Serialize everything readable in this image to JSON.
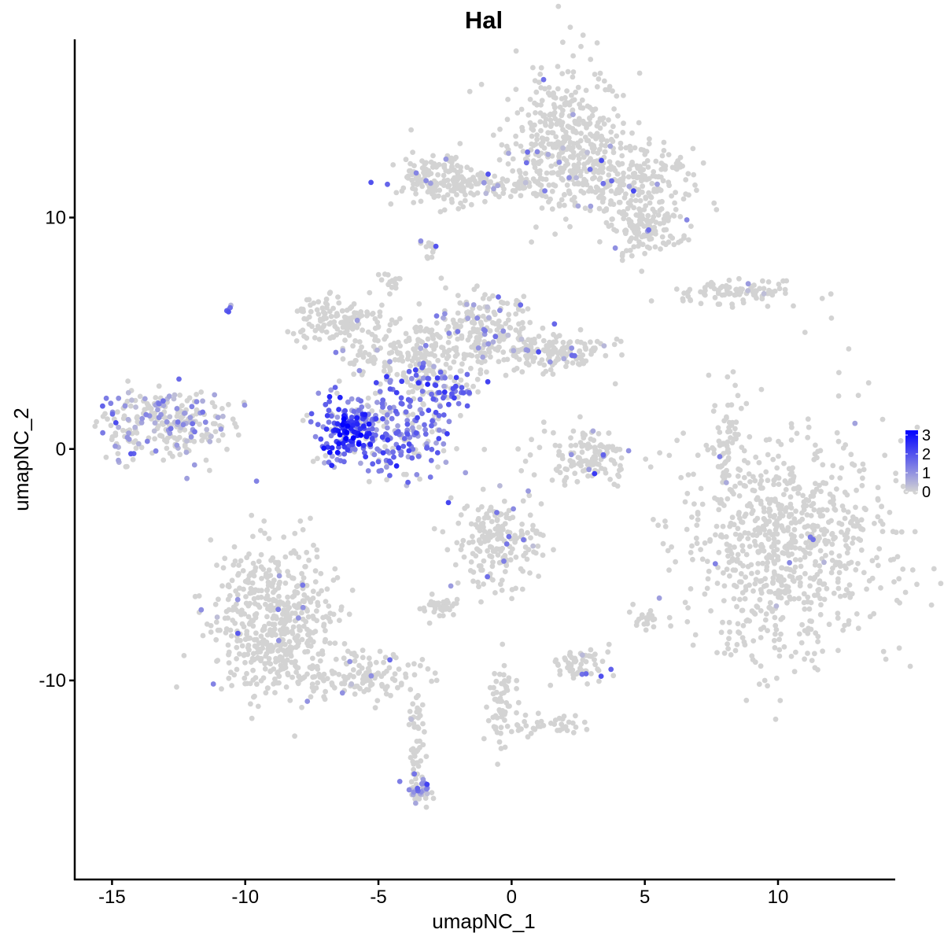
{
  "chart_data": {
    "type": "scatter",
    "title": "Hal",
    "xlabel": "umapNC_1",
    "ylabel": "umapNC_2",
    "xlim": [
      -16.4,
      14.4
    ],
    "ylim": [
      -18.6,
      17.7
    ],
    "xticks": [
      -15,
      -10,
      -5,
      0,
      5,
      10
    ],
    "yticks": [
      -10,
      0,
      10
    ],
    "grid": false,
    "legend": {
      "position": "right",
      "type": "colorbar",
      "ticks": [
        3,
        2,
        1,
        0
      ],
      "range": [
        0,
        3
      ],
      "low_color": "#D3D3D3",
      "high_color": "#0000FF"
    },
    "point_color_zero": "#D3D3D3",
    "note_clusters_schema": [
      "center_x",
      "center_y",
      "sd_x",
      "sd_y",
      "n_points",
      "fraction_expressing",
      "mean_expression"
    ],
    "clusters": [
      [
        2.0,
        13.3,
        1.4,
        1.8,
        420,
        0.03,
        0.9
      ],
      [
        4.4,
        11.6,
        1.4,
        0.8,
        200,
        0.03,
        0.9
      ],
      [
        5.0,
        9.6,
        0.9,
        0.7,
        140,
        0.03,
        0.9
      ],
      [
        -1.2,
        11.4,
        1.6,
        0.35,
        110,
        0.03,
        0.9
      ],
      [
        -2.8,
        11.8,
        0.9,
        0.7,
        120,
        0.04,
        1.0
      ],
      [
        8.2,
        6.8,
        1.5,
        0.3,
        90,
        0.03,
        0.9
      ],
      [
        10.3,
        -4.1,
        2.3,
        3.0,
        800,
        0.01,
        0.8
      ],
      [
        -13.0,
        1.05,
        1.5,
        0.9,
        260,
        0.35,
        0.8
      ],
      [
        -6.5,
        5.5,
        1.1,
        0.55,
        130,
        0.02,
        0.8
      ],
      [
        -0.9,
        5.1,
        1.3,
        0.9,
        220,
        0.12,
        0.9
      ],
      [
        1.5,
        4.1,
        1.1,
        0.5,
        140,
        0.04,
        0.9
      ],
      [
        -3.9,
        4.1,
        1.4,
        0.7,
        160,
        0.05,
        0.9
      ],
      [
        -4.75,
        0.9,
        1.5,
        1.3,
        320,
        0.7,
        1.3
      ],
      [
        -6.2,
        0.8,
        0.5,
        0.6,
        80,
        0.95,
        2.3
      ],
      [
        -2.6,
        2.6,
        0.8,
        0.5,
        80,
        0.45,
        1.6
      ],
      [
        3.0,
        -0.3,
        1.0,
        0.8,
        140,
        0.04,
        1.0
      ],
      [
        8.1,
        -0.2,
        0.25,
        1.4,
        60,
        0.03,
        1.0
      ],
      [
        -0.5,
        -3.9,
        1.0,
        1.2,
        200,
        0.02,
        0.9
      ],
      [
        -2.7,
        -6.8,
        0.4,
        0.25,
        40,
        0.0,
        0
      ],
      [
        -8.9,
        -7.5,
        1.4,
        1.9,
        520,
        0.02,
        0.9
      ],
      [
        -5.9,
        -9.8,
        1.4,
        0.55,
        140,
        0.03,
        0.9
      ],
      [
        -3.6,
        -12.8,
        0.2,
        1.6,
        50,
        0.05,
        0.9
      ],
      [
        -3.55,
        -14.8,
        0.3,
        0.35,
        40,
        0.6,
        1.0
      ],
      [
        2.6,
        -9.3,
        0.6,
        0.4,
        60,
        0.05,
        1.5
      ],
      [
        -0.4,
        -11.0,
        0.35,
        1.1,
        60,
        0.0,
        0
      ],
      [
        1.3,
        -11.9,
        0.9,
        0.25,
        40,
        0.0,
        0
      ],
      [
        5.0,
        -7.3,
        0.25,
        0.3,
        20,
        0.0,
        0
      ],
      [
        -4.6,
        7.2,
        0.25,
        0.3,
        15,
        0.0,
        0
      ],
      [
        -10.65,
        6.05,
        0.1,
        0.1,
        5,
        1.0,
        1.3
      ],
      [
        -3.0,
        8.7,
        0.2,
        0.3,
        12,
        0.1,
        0.9
      ]
    ]
  }
}
